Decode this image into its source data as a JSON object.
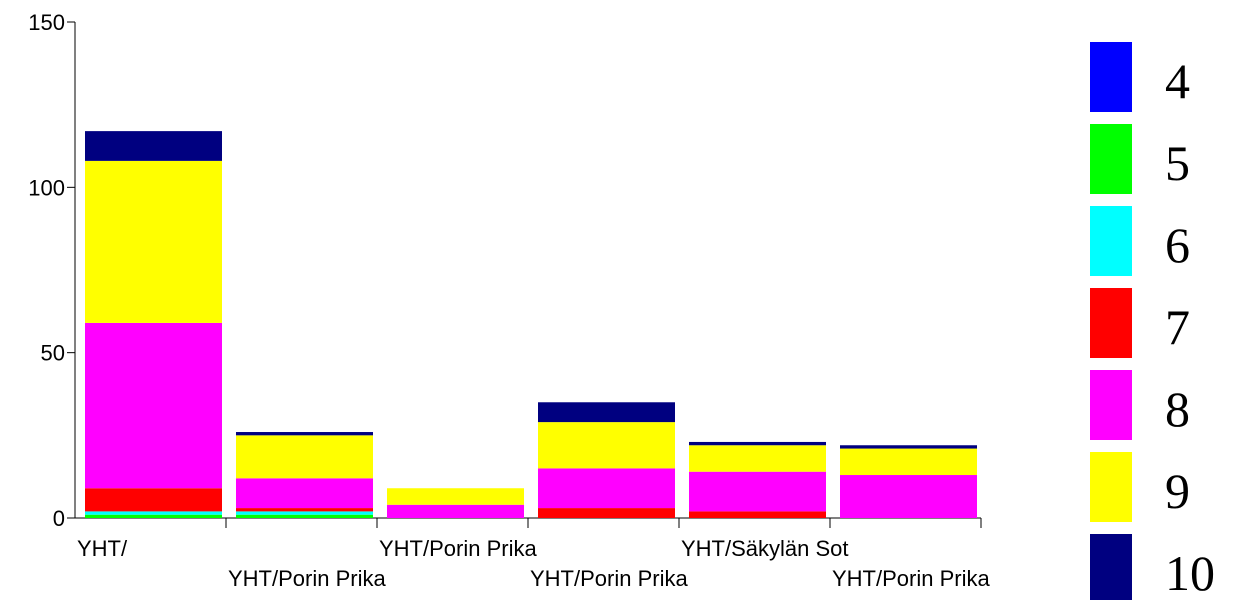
{
  "chart_data": {
    "type": "stacked_bar",
    "categories": [
      "YHT/",
      "YHT/Porin Prika",
      "YHT/Porin Prika",
      "YHT/Porin Prika",
      "YHT/Säkylän Sot",
      "YHT/Porin Prika"
    ],
    "series": [
      {
        "name": "4",
        "color": "#0000ff",
        "values": [
          0,
          0,
          0,
          0,
          0,
          0
        ]
      },
      {
        "name": "5",
        "color": "#00ff00",
        "values": [
          1,
          1,
          0,
          0,
          0,
          0
        ]
      },
      {
        "name": "6",
        "color": "#00ffff",
        "values": [
          1,
          1,
          0,
          0,
          0,
          0
        ]
      },
      {
        "name": "7",
        "color": "#ff0000",
        "values": [
          7,
          1,
          0,
          3,
          2,
          0
        ]
      },
      {
        "name": "8",
        "color": "#ff00ff",
        "values": [
          50,
          9,
          4,
          12,
          12,
          13
        ]
      },
      {
        "name": "9",
        "color": "#ffff00",
        "values": [
          49,
          13,
          5,
          14,
          8,
          8
        ]
      },
      {
        "name": "10",
        "color": "#000080",
        "values": [
          9,
          1,
          0,
          6,
          1,
          1
        ]
      }
    ],
    "ylim": [
      0,
      150
    ],
    "yticks": [
      0,
      50,
      100,
      150
    ]
  }
}
